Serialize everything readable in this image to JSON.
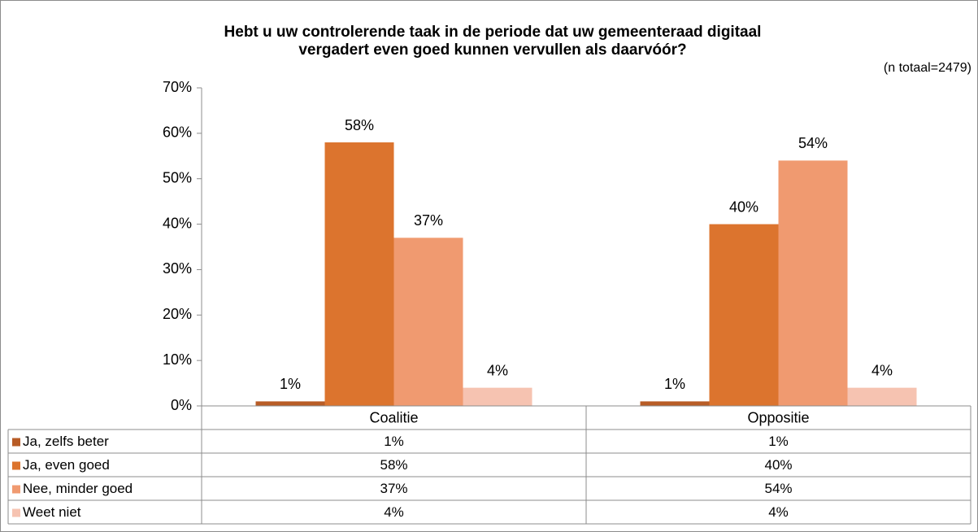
{
  "chart_data": {
    "type": "bar",
    "title": [
      "Hebt u uw controlerende taak in de periode dat uw gemeenteraad digitaal",
      "vergadert even goed kunnen vervullen als daarvóór?"
    ],
    "subtitle": "(n totaal=2479)",
    "categories": [
      "Coalitie",
      "Oppositie"
    ],
    "series": [
      {
        "name": "Ja, zelfs beter",
        "color": "#b85c26",
        "values": [
          1,
          1
        ],
        "value_labels": [
          "1%",
          "1%"
        ]
      },
      {
        "name": "Ja, even goed",
        "color": "#dc742e",
        "values": [
          58,
          40
        ],
        "value_labels": [
          "58%",
          "40%"
        ]
      },
      {
        "name": "Nee, minder goed",
        "color": "#f09a70",
        "values": [
          37,
          54
        ],
        "value_labels": [
          "37%",
          "54%"
        ]
      },
      {
        "name": "Weet niet",
        "color": "#f6c3b1",
        "values": [
          4,
          4
        ],
        "value_labels": [
          "4%",
          "4%"
        ]
      }
    ],
    "ylim": [
      0,
      70
    ],
    "yticks": [
      {
        "value": 0,
        "label": "0%"
      },
      {
        "value": 10,
        "label": "10%"
      },
      {
        "value": 20,
        "label": "20%"
      },
      {
        "value": 30,
        "label": "30%"
      },
      {
        "value": 40,
        "label": "40%"
      },
      {
        "value": 50,
        "label": "50%"
      },
      {
        "value": 60,
        "label": "60%"
      },
      {
        "value": 70,
        "label": "70%"
      }
    ]
  }
}
